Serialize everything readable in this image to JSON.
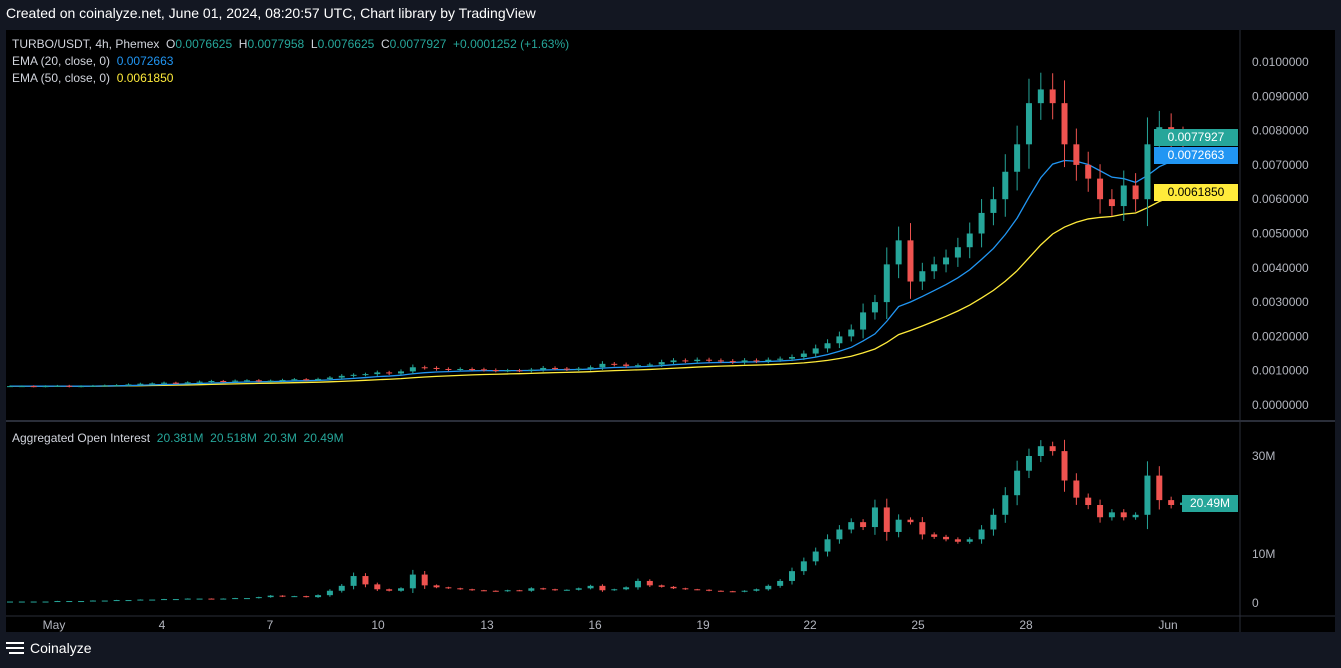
{
  "header": {
    "created": "Created on coinalyze.net, June 01, 2024, 08:20:57 UTC, Chart library by TradingView"
  },
  "legend": {
    "symbol": "TURBO/USDT, 4h, Phemex",
    "o_label": "O",
    "o": "0.0076625",
    "h_label": "H",
    "h": "0.0077958",
    "l_label": "L",
    "l": "0.0076625",
    "c_label": "C",
    "c": "0.0077927",
    "change": "+0.0001252 (+1.63%)",
    "ema20_label": "EMA (20, close, 0)",
    "ema20": "0.0072663",
    "ema50_label": "EMA (50, close, 0)",
    "ema50": "0.0061850"
  },
  "oi_legend": {
    "label": "Aggregated Open Interest",
    "v1": "20.381M",
    "v2": "20.518M",
    "v3": "20.3M",
    "v4": "20.49M"
  },
  "tags": {
    "price": "0.0077927",
    "ema20": "0.0072663",
    "ema50": "0.0061850",
    "oi": "20.49M"
  },
  "footer": {
    "brand": "Coinalyze"
  },
  "colors": {
    "up": "#26a69a",
    "down": "#ef5350",
    "ema20": "#2196f3",
    "ema50": "#ffeb3b"
  },
  "chart_data": [
    {
      "type": "candlestick",
      "title": "TURBO/USDT, 4h, Phemex",
      "ylim": [
        0,
        0.0105
      ],
      "yticks": [
        "0.0100000",
        "0.0090000",
        "0.0080000",
        "0.0070000",
        "0.0060000",
        "0.0050000",
        "0.0040000",
        "0.0030000",
        "0.0020000",
        "0.0010000",
        "0.0000000"
      ],
      "xticks": [
        "May",
        "4",
        "7",
        "10",
        "13",
        "16",
        "19",
        "22",
        "25",
        "28",
        "Jun"
      ],
      "close": [
        0.00055,
        0.00055,
        0.00054,
        0.00055,
        0.00056,
        0.00054,
        0.00055,
        0.00056,
        0.00057,
        0.00058,
        0.0006,
        0.00062,
        0.00063,
        0.00065,
        0.00064,
        0.00066,
        0.00068,
        0.0007,
        0.00069,
        0.00071,
        0.00072,
        0.0007,
        0.00071,
        0.00073,
        0.00075,
        0.00074,
        0.00076,
        0.0008,
        0.00085,
        0.00088,
        0.0009,
        0.00095,
        0.00092,
        0.00098,
        0.0011,
        0.00108,
        0.00105,
        0.00103,
        0.00105,
        0.00104,
        0.00102,
        0.001,
        0.00101,
        0.001,
        0.00103,
        0.00108,
        0.00106,
        0.00104,
        0.00106,
        0.0011,
        0.0012,
        0.00118,
        0.00114,
        0.00116,
        0.00118,
        0.00125,
        0.0013,
        0.00128,
        0.00132,
        0.0013,
        0.00128,
        0.00125,
        0.0013,
        0.00128,
        0.00132,
        0.00135,
        0.0014,
        0.0015,
        0.00165,
        0.0018,
        0.002,
        0.0022,
        0.0027,
        0.003,
        0.0041,
        0.0048,
        0.0036,
        0.0039,
        0.0041,
        0.0043,
        0.0046,
        0.005,
        0.0056,
        0.006,
        0.0068,
        0.0076,
        0.0088,
        0.0092,
        0.0088,
        0.0076,
        0.007,
        0.0066,
        0.006,
        0.0058,
        0.0064,
        0.006,
        0.0076,
        0.0081,
        0.0078,
        0.00779
      ]
    },
    {
      "type": "candlestick",
      "title": "Aggregated Open Interest",
      "ylim": [
        0,
        35
      ],
      "yunit": "M",
      "yticks": [
        "30M",
        "10M",
        "0"
      ],
      "values": [
        0.3,
        0.3,
        0.3,
        0.3,
        0.4,
        0.4,
        0.4,
        0.5,
        0.5,
        0.6,
        0.6,
        0.7,
        0.7,
        0.8,
        0.8,
        0.9,
        0.9,
        0.8,
        0.9,
        1.0,
        1.0,
        1.2,
        1.5,
        1.3,
        1.4,
        1.2,
        1.6,
        2.5,
        3.5,
        5.5,
        3.8,
        2.8,
        2.5,
        3.0,
        5.8,
        3.6,
        3.2,
        3.0,
        2.8,
        2.6,
        2.5,
        2.4,
        2.6,
        2.5,
        3.0,
        2.8,
        2.6,
        2.7,
        3.0,
        3.5,
        2.6,
        2.8,
        3.2,
        4.5,
        3.6,
        3.3,
        3.0,
        2.8,
        2.7,
        2.5,
        2.4,
        2.3,
        2.5,
        2.8,
        3.5,
        4.5,
        6.5,
        8.5,
        10.5,
        13.0,
        15.0,
        16.5,
        15.5,
        19.5,
        14.5,
        17.0,
        16.5,
        14.0,
        13.5,
        13.0,
        12.5,
        13.0,
        15.0,
        18.0,
        22.0,
        27.0,
        30.0,
        32.0,
        31.0,
        25.0,
        21.5,
        20.0,
        17.5,
        18.5,
        17.5,
        18.0,
        26.0,
        21.0,
        20.0,
        20.49
      ]
    }
  ]
}
